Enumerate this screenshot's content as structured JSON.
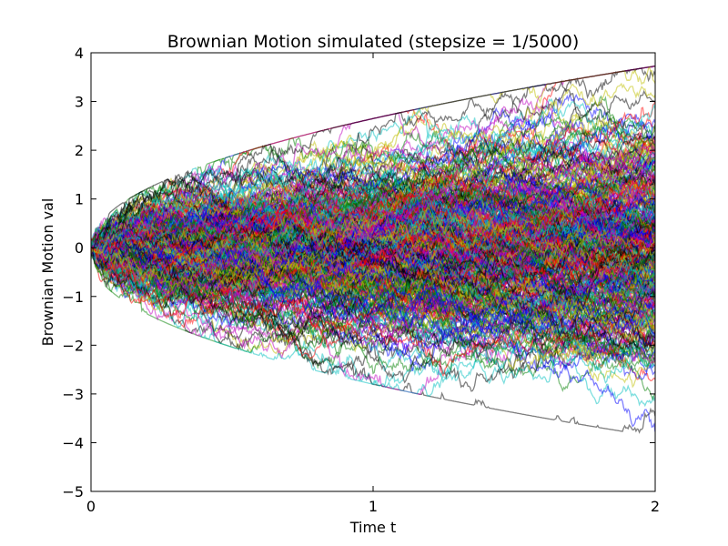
{
  "chart_data": {
    "type": "line",
    "title": "Brownian Motion simulated (stepsize = 1/5000)",
    "xlabel": "Time t",
    "ylabel": "Brownian Motion val",
    "xlim": [
      0,
      2
    ],
    "ylim": [
      -5,
      4
    ],
    "xticks": [
      0,
      1,
      2
    ],
    "yticks": [
      -5,
      -4,
      -3,
      -2,
      -1,
      0,
      1,
      2,
      3,
      4
    ],
    "grid": false,
    "legend": "none",
    "line_alpha": 0.5,
    "series_colors": [
      "#0000ff",
      "#008000",
      "#ff0000",
      "#00bfbf",
      "#bf00bf",
      "#bfbf00",
      "#000000"
    ],
    "series_count": 1000,
    "steps": 10000,
    "stepsize": "1/5000",
    "envelope_std_multiplier": 2.6,
    "tick_labels": {
      "x": [
        "0",
        "1",
        "2"
      ],
      "y": [
        "−5",
        "−4",
        "−3",
        "−2",
        "−1",
        "0",
        "1",
        "2",
        "3",
        "4"
      ]
    }
  }
}
